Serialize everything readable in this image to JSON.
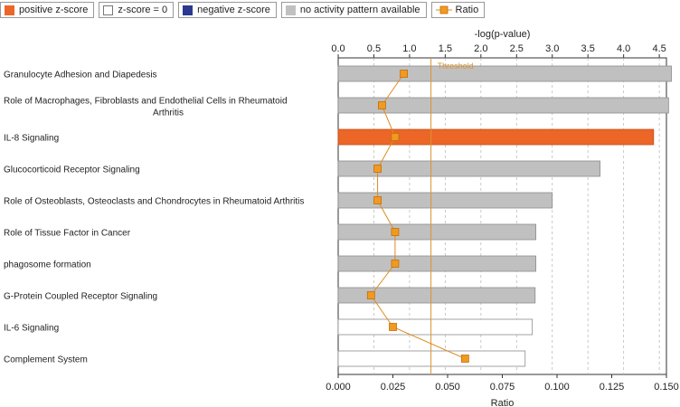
{
  "legend": {
    "positive": "positive z-score",
    "zero": "z-score = 0",
    "negative": "negative z-score",
    "none": "no activity pattern available",
    "ratio": "Ratio"
  },
  "colors": {
    "positive": "#ec6627",
    "zero": "#ffffff",
    "negative": "#2b3990",
    "none": "#c0c0c0",
    "ratio": "#f29a1f",
    "ratio_line": "#e08a1e",
    "threshold": "#d99532"
  },
  "chart_data": {
    "type": "bar",
    "orientation": "horizontal",
    "top_axis": {
      "label": "-log(p-value)",
      "range": [
        0,
        4.6
      ],
      "ticks": [
        "0.0",
        "0.5",
        "1.0",
        "1.5",
        "2.0",
        "2.5",
        "3.0",
        "3.5",
        "4.0",
        "4.5"
      ]
    },
    "bottom_axis": {
      "label": "Ratio",
      "range": [
        0,
        0.15
      ],
      "ticks": [
        "0.000",
        "0.025",
        "0.050",
        "0.075",
        "0.100",
        "0.125",
        "0.150"
      ]
    },
    "threshold": {
      "label": "Threshold",
      "value": 1.3
    },
    "categories": [
      "Granulocyte Adhesion and Diapedesis",
      "Role of Macrophages, Fibroblasts and Endothelial Cells in Rheumatoid|Arthritis",
      "IL-8 Signaling",
      "Glucocorticoid Receptor Signaling",
      "Role of Osteoblasts, Osteoclasts and Chondrocytes in Rheumatoid Arthritis",
      "Role of Tissue Factor in Cancer",
      "phagosome formation",
      "G-Protein Coupled Receptor Signaling",
      "IL-6 Signaling",
      "Complement System"
    ],
    "neg_log_p": [
      4.67,
      4.63,
      4.42,
      3.67,
      3.0,
      2.77,
      2.77,
      2.76,
      2.72,
      2.62
    ],
    "bar_pattern": [
      "none",
      "none",
      "positive",
      "none",
      "none",
      "none",
      "none",
      "none",
      "zero",
      "zero"
    ],
    "ratio": [
      0.03,
      0.02,
      0.026,
      0.018,
      0.018,
      0.026,
      0.026,
      0.015,
      0.025,
      0.058
    ]
  }
}
